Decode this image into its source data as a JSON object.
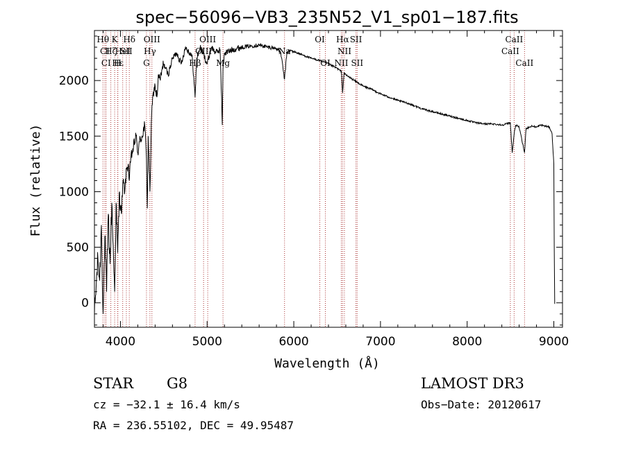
{
  "chart_data": {
    "type": "line",
    "title": "spec−56096−VB3_235N52_V1_sp01−187.fits",
    "xlabel": "Wavelength (Å)",
    "ylabel": "Flux (relative)",
    "xlim": [
      3700,
      9100
    ],
    "ylim": [
      -220,
      2450
    ],
    "xticks": [
      4000,
      5000,
      6000,
      7000,
      8000,
      9000
    ],
    "yticks": [
      0,
      500,
      1000,
      1500,
      2000
    ],
    "grid": false,
    "series": [
      {
        "name": "spectrum",
        "x": [
          3700,
          3720,
          3740,
          3760,
          3780,
          3800,
          3820,
          3840,
          3860,
          3880,
          3900,
          3920,
          3933,
          3950,
          3968,
          3990,
          4010,
          4030,
          4050,
          4070,
          4090,
          4102,
          4120,
          4150,
          4180,
          4200,
          4220,
          4250,
          4280,
          4300,
          4310,
          4320,
          4340,
          4360,
          4380,
          4400,
          4420,
          4440,
          4460,
          4480,
          4500,
          4550,
          4600,
          4650,
          4700,
          4750,
          4800,
          4830,
          4861,
          4880,
          4920,
          4950,
          5000,
          5050,
          5100,
          5150,
          5175,
          5183,
          5200,
          5250,
          5300,
          5400,
          5500,
          5600,
          5700,
          5800,
          5850,
          5893,
          5920,
          5950,
          6000,
          6100,
          6200,
          6300,
          6400,
          6500,
          6550,
          6563,
          6580,
          6600,
          6700,
          6800,
          6900,
          7000,
          7100,
          7200,
          7300,
          7400,
          7500,
          7600,
          7700,
          7800,
          7900,
          8000,
          8100,
          8200,
          8300,
          8400,
          8450,
          8498,
          8520,
          8542,
          8560,
          8600,
          8662,
          8680,
          8750,
          8800,
          8850,
          8900,
          8950,
          8980,
          9000,
          9005,
          9010
        ],
        "y": [
          -100,
          150,
          400,
          200,
          700,
          -100,
          600,
          100,
          800,
          350,
          900,
          400,
          100,
          900,
          450,
          1000,
          800,
          1100,
          1000,
          1200,
          1250,
          1100,
          1300,
          1400,
          1500,
          1350,
          1450,
          1500,
          1600,
          1300,
          850,
          1500,
          1000,
          1700,
          1900,
          1950,
          1850,
          2050,
          2000,
          2100,
          2150,
          2050,
          2200,
          2250,
          2150,
          2300,
          2250,
          2200,
          1850,
          2200,
          2300,
          2250,
          2150,
          2300,
          2250,
          2280,
          1600,
          2100,
          2250,
          2260,
          2280,
          2300,
          2310,
          2320,
          2300,
          2290,
          2250,
          2010,
          2250,
          2270,
          2260,
          2230,
          2200,
          2180,
          2150,
          2110,
          2080,
          1890,
          2070,
          2050,
          2000,
          1950,
          1920,
          1880,
          1850,
          1820,
          1800,
          1770,
          1740,
          1720,
          1700,
          1680,
          1660,
          1640,
          1620,
          1610,
          1610,
          1600,
          1610,
          1620,
          1350,
          1520,
          1600,
          1580,
          1350,
          1570,
          1590,
          1580,
          1600,
          1590,
          1580,
          1520,
          1250,
          500,
          -10
        ]
      }
    ],
    "lines": [
      {
        "wl": 3798,
        "label": "Hθ",
        "row": 0
      },
      {
        "wl": 3820,
        "label": "CI",
        "row": 1
      },
      {
        "wl": 3835,
        "label": "CI",
        "row": 2
      },
      {
        "wl": 3889,
        "label": "Hζ",
        "row": 1
      },
      {
        "wl": 3933,
        "label": "K",
        "row": 0
      },
      {
        "wl": 3968,
        "label": "H",
        "row": 2
      },
      {
        "wl": 3970,
        "label": "Hε",
        "row": 2
      },
      {
        "wl": 4026,
        "label": "HeI",
        "row": 1
      },
      {
        "wl": 4068,
        "label": "SII",
        "row": 1
      },
      {
        "wl": 4102,
        "label": "Hδ",
        "row": 0
      },
      {
        "wl": 4300,
        "label": "G",
        "row": 2
      },
      {
        "wl": 4340,
        "label": "Hγ",
        "row": 1
      },
      {
        "wl": 4363,
        "label": "OIII",
        "row": 0
      },
      {
        "wl": 4861,
        "label": "Hβ",
        "row": 2
      },
      {
        "wl": 4959,
        "label": "OIII",
        "row": 1
      },
      {
        "wl": 5007,
        "label": "OIII",
        "row": 0
      },
      {
        "wl": 5183,
        "label": "Mg",
        "row": 2
      },
      {
        "wl": 5893,
        "label": "Na",
        "row": 1
      },
      {
        "wl": 6300,
        "label": "OI",
        "row": 0
      },
      {
        "wl": 6364,
        "label": "OI",
        "row": 2
      },
      {
        "wl": 6548,
        "label": "NII",
        "row": 2
      },
      {
        "wl": 6563,
        "label": "Hα",
        "row": 0
      },
      {
        "wl": 6584,
        "label": "NII",
        "row": 1
      },
      {
        "wl": 6717,
        "label": "SII",
        "row": 0
      },
      {
        "wl": 6731,
        "label": "SII",
        "row": 2
      },
      {
        "wl": 8498,
        "label": "CaII",
        "row": 1
      },
      {
        "wl": 8542,
        "label": "CaII",
        "row": 0
      },
      {
        "wl": 8662,
        "label": "CaII",
        "row": 2
      }
    ]
  },
  "info": {
    "class": "STAR",
    "subclass": "G8",
    "survey": "LAMOST DR3",
    "cz": "cz = −32.1 ± 16.4 km/s",
    "obs_date": "Obs−Date: 20120617",
    "coords": "RA = 236.55102, DEC =  49.95487"
  }
}
